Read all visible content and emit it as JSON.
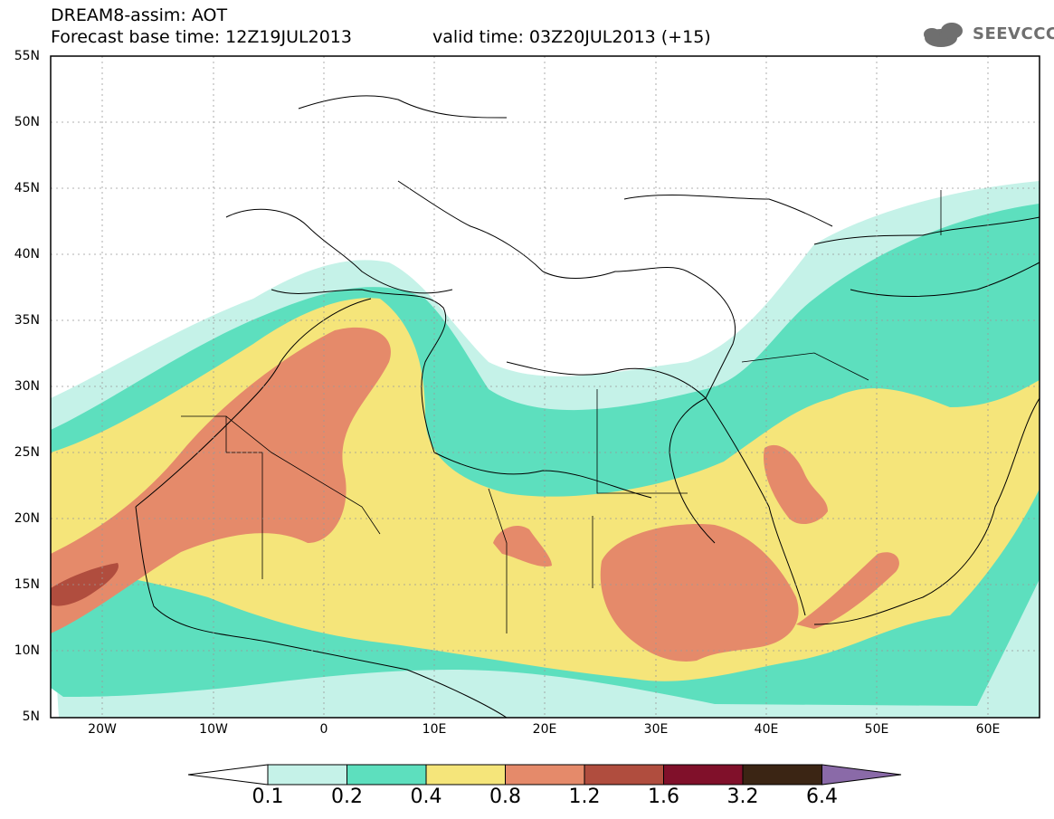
{
  "header": {
    "title": "DREAM8-assim: AOT",
    "base_time": "Forecast base time: 12Z19JUL2013",
    "valid_time": "valid time: 03Z20JUL2013 (+15)"
  },
  "logo": {
    "text": "SEEVCCC",
    "color": "#6f6f6f"
  },
  "axes": {
    "lat_labels": [
      "55N",
      "50N",
      "45N",
      "40N",
      "35N",
      "30N",
      "25N",
      "20N",
      "15N",
      "10N",
      "5N"
    ],
    "lon_labels": [
      "20W",
      "10W",
      "0",
      "10E",
      "20E",
      "30E",
      "40E",
      "50E",
      "60E"
    ]
  },
  "colorbar": {
    "labels": [
      "0.1",
      "0.2",
      "0.4",
      "0.8",
      "1.2",
      "1.6",
      "3.2",
      "6.4"
    ],
    "colors": [
      "#ffffff",
      "#c5f2e8",
      "#5ddfbe",
      "#f5e57a",
      "#e58a6a",
      "#b04d3e",
      "#80102a",
      "#3b2514",
      "#8a6aa8"
    ]
  },
  "field_colors": {
    "level_0.1": "#c5f2e8",
    "level_0.2": "#5ddfbe",
    "level_0.4": "#f5e57a",
    "level_0.8": "#e58a6a",
    "level_1.2": "#b04d3e"
  }
}
